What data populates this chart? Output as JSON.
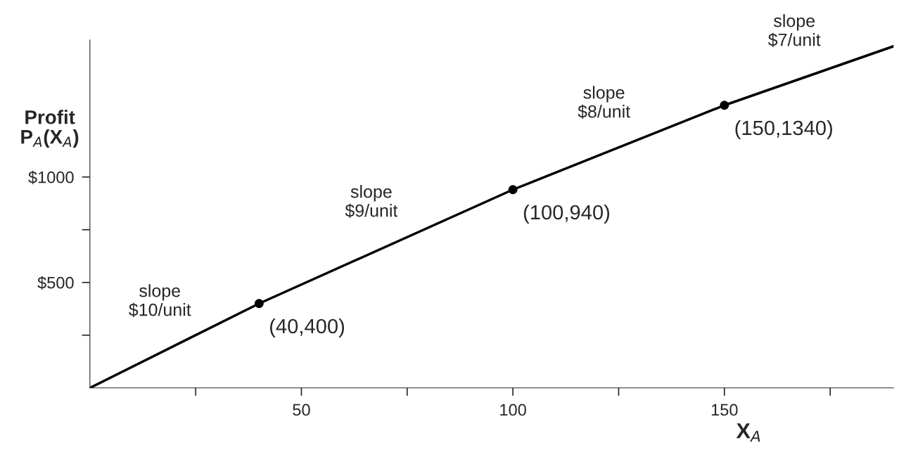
{
  "chart_data": {
    "type": "line",
    "ylabel": "Profit\nP$_{A}$(X$_{A}$)",
    "xlabel": "X$_{A}$",
    "x": [
      0,
      40,
      100,
      150,
      190
    ],
    "series": [
      {
        "type": "line",
        "color": "#000000",
        "marker": "none",
        "values": [
          0,
          400,
          940,
          1340,
          1620
        ]
      },
      {
        "type": "scatter",
        "color": "#000000",
        "marker": "circle",
        "x": [
          40,
          100,
          150
        ],
        "values": [
          400,
          940,
          1340
        ]
      }
    ],
    "xlim": [
      0,
      190
    ],
    "ylim": [
      0,
      1650
    ],
    "xticks": [
      {
        "value": 25,
        "label": null
      },
      50,
      {
        "value": 75,
        "label": null
      },
      100,
      {
        "value": 125,
        "label": null
      },
      150,
      {
        "value": 175,
        "label": null
      }
    ],
    "yticks": [
      {
        "value": 250,
        "label": null
      },
      {
        "value": 500,
        "label": "$500"
      },
      {
        "value": 750,
        "label": null
      },
      {
        "value": 1000,
        "label": "$1000"
      }
    ],
    "grid": false,
    "legend": false,
    "annotations": [
      {
        "text": "(40,400)",
        "x": 40,
        "y": 400
      },
      {
        "text": "(100,940)",
        "x": 100,
        "y": 940
      },
      {
        "text": "(150,1340)",
        "x": 150,
        "y": 1340
      },
      {
        "text": "slope\n$10/unit",
        "x": 20,
        "y": 200
      },
      {
        "text": "slope\n$9/unit",
        "x": 70,
        "y": 670
      },
      {
        "text": "slope\n$8/unit",
        "x": 125,
        "y": 1140
      },
      {
        "text": "slope\n$7/unit",
        "x": 170,
        "y": 1480
      }
    ]
  }
}
